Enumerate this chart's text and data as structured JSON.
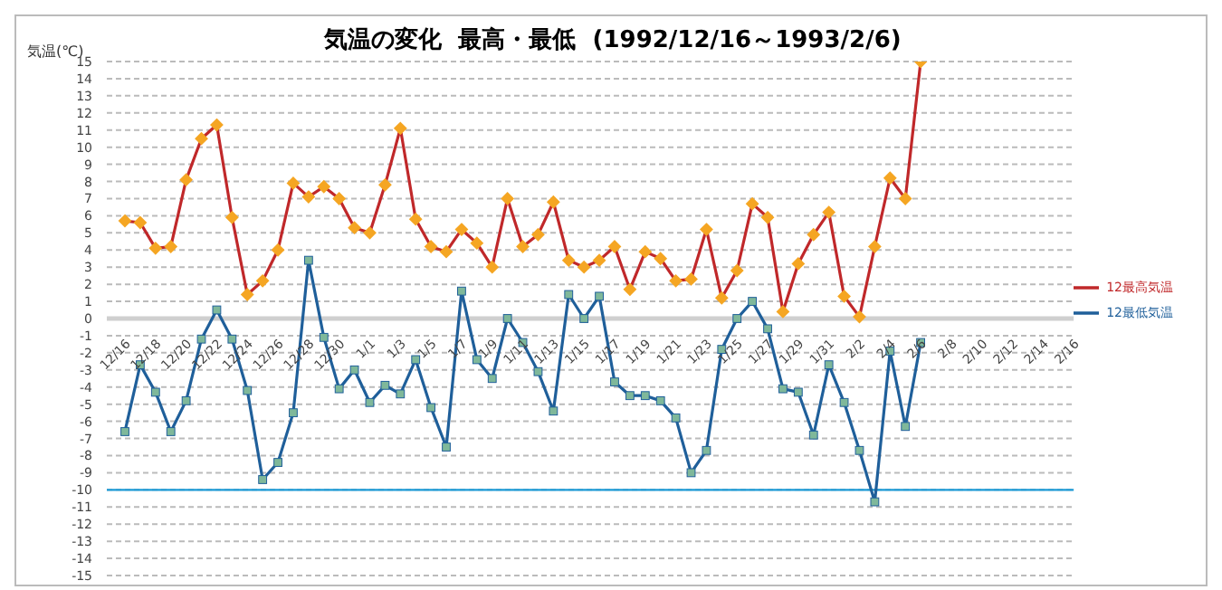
{
  "chart_data": {
    "type": "line",
    "title": "気温の変化  最高・最低  (1992/12/16～1993/2/6)",
    "ylabel": "気温(℃)",
    "categories": [
      "12/16",
      null,
      "12/18",
      null,
      "12/20",
      null,
      "12/22",
      null,
      "12/24",
      null,
      "12/26",
      null,
      "12/28",
      null,
      "12/30",
      null,
      "1/1",
      null,
      "1/3",
      null,
      "1/5",
      null,
      "1/7",
      null,
      "1/9",
      null,
      "1/11",
      null,
      "1/13",
      null,
      "1/15",
      null,
      "1/17",
      null,
      "1/19",
      null,
      "1/21",
      null,
      "1/23",
      null,
      "1/25",
      null,
      "1/27",
      null,
      "1/29",
      null,
      "1/31",
      null,
      "2/2",
      null,
      "2/4",
      null,
      "2/6",
      null,
      "2/8",
      null,
      "2/10",
      null,
      "2/12",
      null,
      "2/14",
      null,
      "2/16"
    ],
    "series": [
      {
        "name": "12最高気温",
        "color": "#c0282a",
        "marker": "diamond",
        "values": [
          5.7,
          5.6,
          4.1,
          4.2,
          8.1,
          10.5,
          11.3,
          5.9,
          1.4,
          2.2,
          4.0,
          7.9,
          7.1,
          7.7,
          7.0,
          5.3,
          5.0,
          7.8,
          11.1,
          5.8,
          4.2,
          3.9,
          5.2,
          4.4,
          3.0,
          7.0,
          4.2,
          4.9,
          6.8,
          3.4,
          3.0,
          3.4,
          4.2,
          1.7,
          3.9,
          3.5,
          2.2,
          2.3,
          5.2,
          1.2,
          2.8,
          6.7,
          5.9,
          0.4,
          3.2,
          4.9,
          6.2,
          1.3,
          0.1,
          4.2,
          8.2,
          7.0,
          15,
          null,
          null,
          null,
          null,
          null,
          null,
          null,
          null,
          null,
          null
        ]
      },
      {
        "name": "12最低気温",
        "color": "#1f5f9a",
        "marker": "square",
        "values": [
          -6.6,
          -2.7,
          -4.3,
          -6.6,
          -4.8,
          -1.2,
          0.5,
          -1.2,
          -4.2,
          -9.4,
          -8.4,
          -5.5,
          3.4,
          -1.1,
          -4.1,
          -3.0,
          -4.9,
          -3.9,
          -4.4,
          -2.4,
          -5.2,
          -7.5,
          1.6,
          -2.4,
          -3.5,
          0.0,
          -1.4,
          -3.1,
          -5.4,
          1.4,
          0.0,
          1.3,
          -3.7,
          -4.5,
          -4.5,
          -4.8,
          -5.8,
          -9.0,
          -7.7,
          -1.8,
          0.0,
          1.0,
          -0.6,
          -4.1,
          -4.3,
          -6.8,
          -2.7,
          -4.9,
          -7.7,
          -10.7,
          -1.9,
          -6.3,
          -1.4,
          null,
          null,
          null,
          null,
          null,
          null,
          null,
          null,
          null,
          null
        ]
      }
    ],
    "ylim": [
      -15,
      15
    ],
    "yticks": [
      -15,
      -14,
      -13,
      -12,
      -11,
      -10,
      -9,
      -8,
      -7,
      -6,
      -5,
      -4,
      -3,
      -2,
      -1,
      0,
      1,
      2,
      3,
      4,
      5,
      6,
      7,
      8,
      9,
      10,
      11,
      12,
      13,
      14,
      15
    ],
    "ref_lines": [
      {
        "axis": "y",
        "value": -10,
        "color": "#1a9ad6"
      }
    ],
    "grid": "y",
    "legend": "right",
    "line_style": "solid"
  }
}
